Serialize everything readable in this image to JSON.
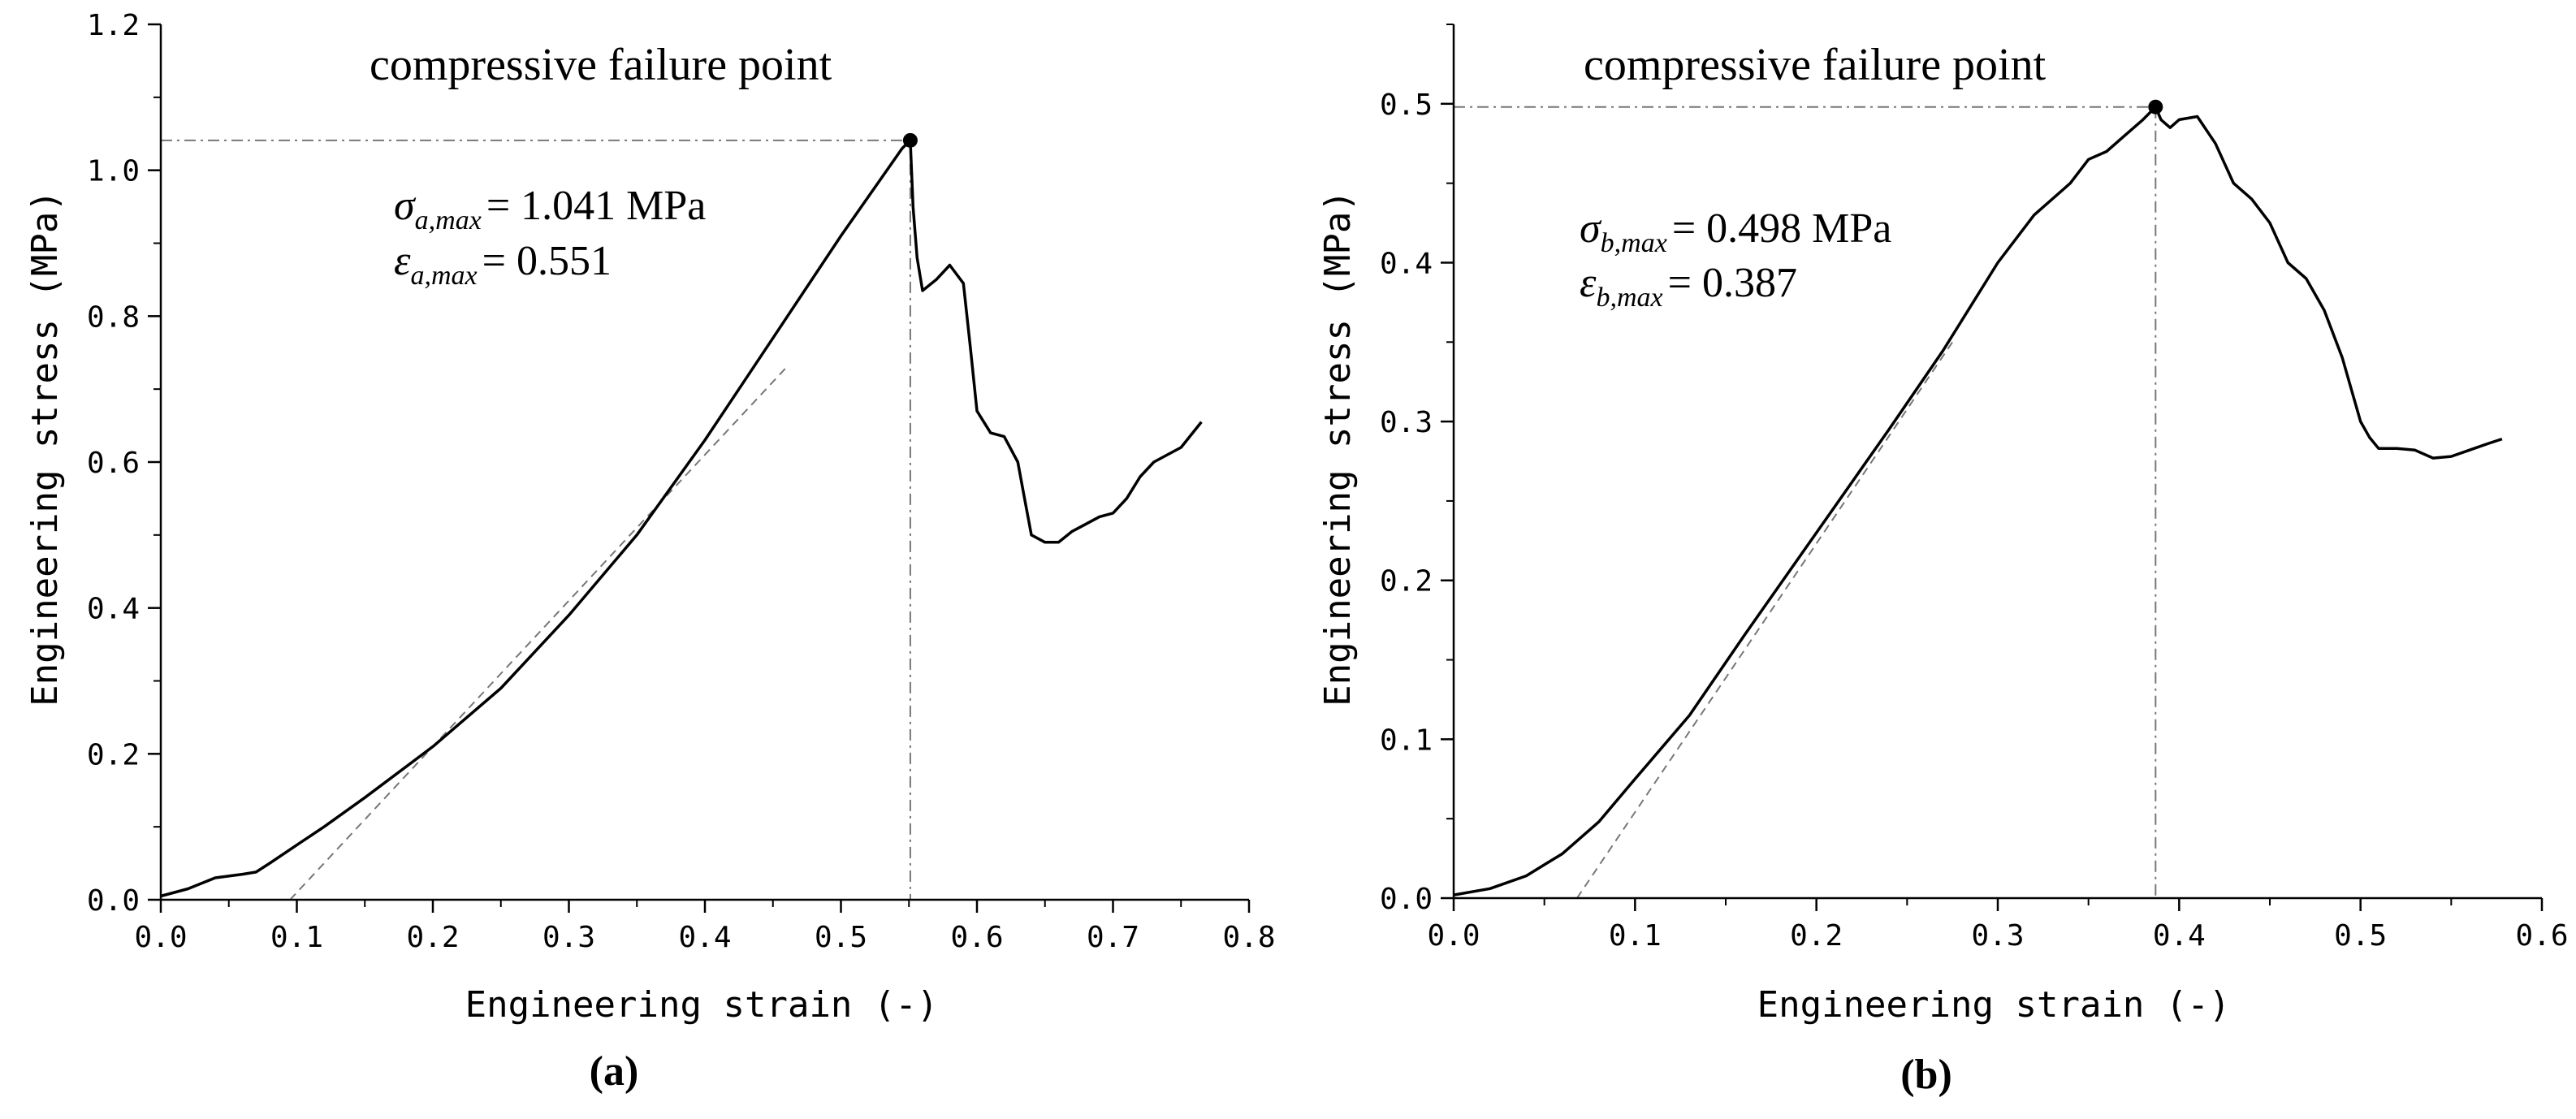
{
  "chart_data": [
    {
      "type": "line",
      "panel_label": "(a)",
      "xlabel": "Engineering strain (-)",
      "ylabel": "Engineering stress (MPa)",
      "xlim": [
        0,
        0.8
      ],
      "ylim": [
        0,
        1.2
      ],
      "xticks": [
        "0.0",
        "0.1",
        "0.2",
        "0.3",
        "0.4",
        "0.5",
        "0.6",
        "0.7",
        "0.8"
      ],
      "yticks": [
        "0.0",
        "0.2",
        "0.4",
        "0.6",
        "0.8",
        "1.0",
        "1.2"
      ],
      "grid": false,
      "annotation_title": "compressive failure point",
      "sigma_symbol": "σ",
      "sigma_subscript": "a,max",
      "sigma_value": "= 1.041 MPa",
      "epsilon_symbol": "ε",
      "epsilon_subscript": "a,max",
      "epsilon_value": "= 0.551",
      "peak": {
        "x": 0.551,
        "y": 1.041
      },
      "tangent_line": {
        "x": [
          0.095,
          0.46
        ],
        "y": [
          0.0,
          0.73
        ]
      },
      "series": [
        {
          "x": [
            0.0,
            0.02,
            0.04,
            0.06,
            0.07,
            0.08,
            0.1,
            0.12,
            0.15,
            0.2,
            0.25,
            0.3,
            0.35,
            0.4,
            0.45,
            0.5,
            0.53,
            0.545,
            0.551,
            0.553,
            0.556,
            0.56,
            0.57,
            0.58,
            0.59,
            0.595,
            0.6,
            0.61,
            0.62,
            0.63,
            0.635,
            0.64,
            0.65,
            0.66,
            0.67,
            0.68,
            0.69,
            0.7,
            0.71,
            0.72,
            0.73,
            0.74,
            0.75,
            0.765
          ],
          "y": [
            0.005,
            0.015,
            0.03,
            0.035,
            0.038,
            0.05,
            0.075,
            0.1,
            0.14,
            0.21,
            0.29,
            0.39,
            0.5,
            0.63,
            0.77,
            0.91,
            0.99,
            1.03,
            1.041,
            0.95,
            0.88,
            0.835,
            0.85,
            0.87,
            0.845,
            0.76,
            0.67,
            0.64,
            0.635,
            0.6,
            0.55,
            0.5,
            0.49,
            0.49,
            0.505,
            0.515,
            0.525,
            0.53,
            0.55,
            0.58,
            0.6,
            0.61,
            0.62,
            0.655
          ]
        }
      ]
    },
    {
      "type": "line",
      "panel_label": "(b)",
      "xlabel": "Engineering strain (-)",
      "ylabel": "Engineering stress (MPa)",
      "xlim": [
        0,
        0.6
      ],
      "ylim": [
        0,
        0.55
      ],
      "xticks": [
        "0.0",
        "0.1",
        "0.2",
        "0.3",
        "0.4",
        "0.5",
        "0.6"
      ],
      "yticks": [
        "0.0",
        "0.1",
        "0.2",
        "0.3",
        "0.4",
        "0.5"
      ],
      "grid": false,
      "annotation_title": "compressive failure point",
      "sigma_symbol": "σ",
      "sigma_subscript": "b,max",
      "sigma_value": "= 0.498 MPa",
      "epsilon_symbol": "ε",
      "epsilon_subscript": "b,max",
      "epsilon_value": "= 0.387",
      "peak": {
        "x": 0.387,
        "y": 0.498
      },
      "tangent_line": {
        "x": [
          0.068,
          0.275
        ],
        "y": [
          0.0,
          0.35
        ]
      },
      "series": [
        {
          "x": [
            0.0,
            0.02,
            0.04,
            0.06,
            0.08,
            0.1,
            0.13,
            0.16,
            0.2,
            0.24,
            0.27,
            0.3,
            0.32,
            0.34,
            0.35,
            0.36,
            0.37,
            0.38,
            0.387,
            0.39,
            0.395,
            0.4,
            0.41,
            0.42,
            0.43,
            0.44,
            0.45,
            0.46,
            0.47,
            0.48,
            0.49,
            0.5,
            0.505,
            0.51,
            0.52,
            0.53,
            0.54,
            0.55,
            0.56,
            0.57,
            0.578
          ],
          "y": [
            0.002,
            0.006,
            0.014,
            0.028,
            0.048,
            0.075,
            0.115,
            0.165,
            0.23,
            0.295,
            0.345,
            0.4,
            0.43,
            0.45,
            0.465,
            0.47,
            0.48,
            0.49,
            0.498,
            0.49,
            0.485,
            0.49,
            0.492,
            0.475,
            0.45,
            0.44,
            0.425,
            0.4,
            0.39,
            0.37,
            0.34,
            0.3,
            0.29,
            0.283,
            0.283,
            0.282,
            0.277,
            0.278,
            0.282,
            0.286,
            0.289
          ]
        }
      ]
    }
  ]
}
